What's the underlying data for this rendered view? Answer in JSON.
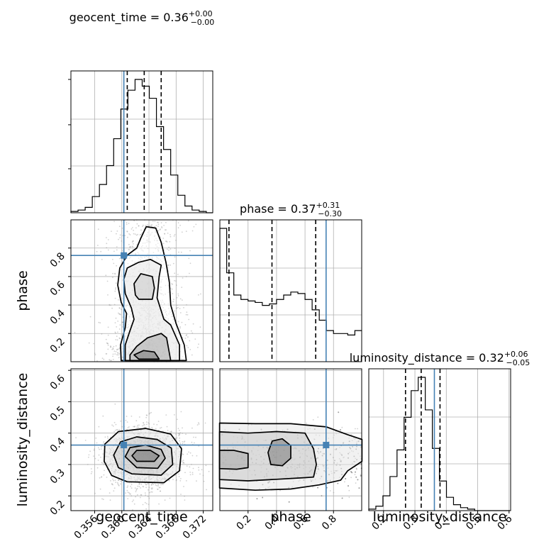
{
  "chart_data": {
    "type": "corner",
    "parameters": [
      "geocent_time",
      "phase",
      "luminosity_distance"
    ],
    "axis_labels": {
      "geocent_time": "geocent_time",
      "phase": "phase",
      "luminosity_distance": "luminosity_distance"
    },
    "ranges": {
      "geocent_time": [
        0.3525,
        0.3734
      ],
      "phase": [
        0.002,
        0.998
      ],
      "luminosity_distance": [
        0.153,
        0.605
      ]
    },
    "truths": {
      "geocent_time": 0.3603,
      "phase": 0.748,
      "luminosity_distance": 0.362
    },
    "truth_color": "#4682b4",
    "titles": [
      {
        "param": "geocent_time",
        "prefix": "geocent_time = 0.36",
        "plus": "+0.00",
        "minus": "−0.00"
      },
      {
        "param": "phase",
        "prefix": "phase = 0.37",
        "plus": "+0.31",
        "minus": "−0.30"
      },
      {
        "param": "luminosity_distance",
        "prefix": "luminosity_distance = 0.32",
        "plus": "+0.06",
        "minus": "−0.05"
      }
    ],
    "quantiles": {
      "geocent_time": [
        0.3608,
        0.3633,
        0.3658
      ],
      "phase": [
        0.066,
        0.368,
        0.675
      ],
      "luminosity_distance": [
        0.27,
        0.32,
        0.38
      ]
    },
    "ticks": {
      "geocent_time": {
        "values": [
          0.356,
          0.36,
          0.364,
          0.368,
          0.372
        ],
        "labels": [
          "0.356",
          "0.360",
          "0.364",
          "0.368",
          "0.372"
        ]
      },
      "phase": {
        "values": [
          0.2,
          0.4,
          0.6,
          0.8
        ],
        "labels": [
          "0.2",
          "0.4",
          "0.6",
          "0.8"
        ]
      },
      "luminosity_distance_y": {
        "values": [
          0.2,
          0.3,
          0.4,
          0.5,
          0.6
        ],
        "labels": [
          "0.2",
          "0.3",
          "0.4",
          "0.5",
          "0.6"
        ]
      },
      "luminosity_distance_x": {
        "values": [
          0.2,
          0.3,
          0.4,
          0.5,
          0.6
        ],
        "labels": [
          "0.2",
          "0.3",
          "0.4",
          "0.5",
          "0.6"
        ]
      }
    },
    "hist_geocent_time": {
      "bin_edges": [
        0.3525,
        0.35355,
        0.3546,
        0.35565,
        0.3567,
        0.35775,
        0.3588,
        0.35985,
        0.3609,
        0.36195,
        0.363,
        0.36405,
        0.3651,
        0.36615,
        0.3672,
        0.36825,
        0.3693,
        0.37035,
        0.3714,
        0.37245,
        0.3735
      ],
      "counts": [
        0.01,
        0.02,
        0.04,
        0.12,
        0.21,
        0.35,
        0.55,
        0.77,
        0.91,
        0.99,
        0.94,
        0.85,
        0.64,
        0.47,
        0.28,
        0.13,
        0.05,
        0.02,
        0.01,
        0.0
      ]
    },
    "hist_phase": {
      "bin_edges": [
        0.0,
        0.05,
        0.1,
        0.15,
        0.2,
        0.25,
        0.3,
        0.35,
        0.4,
        0.45,
        0.5,
        0.55,
        0.6,
        0.65,
        0.7,
        0.75,
        0.8,
        0.85,
        0.9,
        0.95,
        1.0
      ],
      "counts": [
        0.9,
        0.6,
        0.45,
        0.42,
        0.41,
        0.4,
        0.38,
        0.39,
        0.42,
        0.45,
        0.47,
        0.46,
        0.42,
        0.35,
        0.28,
        0.21,
        0.19,
        0.19,
        0.18,
        0.21
      ]
    },
    "hist_luminosity_distance": {
      "bin_edges": [
        0.153,
        0.1755,
        0.198,
        0.2205,
        0.243,
        0.2655,
        0.288,
        0.3105,
        0.333,
        0.3555,
        0.378,
        0.4005,
        0.423,
        0.4455,
        0.468,
        0.4905,
        0.513,
        0.5355,
        0.558,
        0.5805,
        0.603
      ],
      "counts": [
        0.01,
        0.03,
        0.1,
        0.23,
        0.41,
        0.63,
        0.81,
        0.9,
        0.68,
        0.42,
        0.2,
        0.09,
        0.04,
        0.02,
        0.01,
        0.0,
        0.0,
        0.0,
        0.0,
        0.0
      ]
    },
    "contours": {
      "geocent_time__phase": [
        {
          "level": 1,
          "points": [
            [
              0.3625,
              0.02
            ],
            [
              0.3655,
              0.02
            ],
            [
              0.3648,
              0.07
            ],
            [
              0.3632,
              0.08
            ],
            [
              0.3618,
              0.05
            ]
          ]
        },
        {
          "level": 2,
          "points": [
            [
              0.3612,
              0.01
            ],
            [
              0.3672,
              0.01
            ],
            [
              0.3666,
              0.17
            ],
            [
              0.3658,
              0.2
            ],
            [
              0.3638,
              0.17
            ],
            [
              0.3622,
              0.11
            ],
            [
              0.3612,
              0.05
            ]
          ]
        },
        {
          "level": 3,
          "points": [
            [
              0.3625,
              0.44
            ],
            [
              0.3645,
              0.44
            ],
            [
              0.3648,
              0.52
            ],
            [
              0.3645,
              0.6
            ],
            [
              0.3628,
              0.62
            ],
            [
              0.3618,
              0.55
            ],
            [
              0.362,
              0.47
            ]
          ]
        },
        {
          "level": 4,
          "points": [
            [
              0.3605,
              0.01
            ],
            [
              0.3685,
              0.01
            ],
            [
              0.3685,
              0.12
            ],
            [
              0.3672,
              0.26
            ],
            [
              0.3662,
              0.3
            ],
            [
              0.3652,
              0.45
            ],
            [
              0.3655,
              0.6
            ],
            [
              0.3658,
              0.68
            ],
            [
              0.3642,
              0.72
            ],
            [
              0.3625,
              0.7
            ],
            [
              0.3608,
              0.66
            ],
            [
              0.3603,
              0.58
            ],
            [
              0.3605,
              0.48
            ],
            [
              0.3614,
              0.38
            ],
            [
              0.3618,
              0.3
            ],
            [
              0.3612,
              0.22
            ],
            [
              0.3605,
              0.12
            ]
          ]
        },
        {
          "level": 5,
          "points": [
            [
              0.3599,
              0.01
            ],
            [
              0.3695,
              0.01
            ],
            [
              0.3692,
              0.12
            ],
            [
              0.368,
              0.27
            ],
            [
              0.3672,
              0.4
            ],
            [
              0.367,
              0.56
            ],
            [
              0.3665,
              0.7
            ],
            [
              0.3658,
              0.84
            ],
            [
              0.365,
              0.94
            ],
            [
              0.3636,
              0.95
            ],
            [
              0.3628,
              0.87
            ],
            [
              0.3622,
              0.8
            ],
            [
              0.3608,
              0.75
            ],
            [
              0.3597,
              0.66
            ],
            [
              0.3594,
              0.54
            ],
            [
              0.3599,
              0.42
            ],
            [
              0.3607,
              0.34
            ],
            [
              0.3605,
              0.24
            ],
            [
              0.3598,
              0.12
            ]
          ]
        }
      ],
      "geocent_time__luminosity_distance": [
        {
          "level": 1,
          "points": [
            [
              0.3622,
              0.31
            ],
            [
              0.3648,
              0.31
            ],
            [
              0.3655,
              0.328
            ],
            [
              0.3642,
              0.345
            ],
            [
              0.3622,
              0.345
            ],
            [
              0.3615,
              0.328
            ]
          ]
        },
        {
          "level": 2,
          "points": [
            [
              0.3622,
              0.29
            ],
            [
              0.3653,
              0.288
            ],
            [
              0.3664,
              0.32
            ],
            [
              0.3658,
              0.348
            ],
            [
              0.3635,
              0.362
            ],
            [
              0.3612,
              0.354
            ],
            [
              0.3605,
              0.325
            ]
          ]
        },
        {
          "level": 3,
          "points": [
            [
              0.3615,
              0.27
            ],
            [
              0.3658,
              0.266
            ],
            [
              0.3675,
              0.3
            ],
            [
              0.3673,
              0.352
            ],
            [
              0.3652,
              0.38
            ],
            [
              0.3622,
              0.388
            ],
            [
              0.3598,
              0.372
            ],
            [
              0.3588,
              0.33
            ],
            [
              0.3595,
              0.29
            ]
          ]
        },
        {
          "level": 4,
          "points": [
            [
              0.3608,
              0.245
            ],
            [
              0.3662,
              0.242
            ],
            [
              0.3685,
              0.28
            ],
            [
              0.3688,
              0.35
            ],
            [
              0.3672,
              0.397
            ],
            [
              0.3635,
              0.415
            ],
            [
              0.3595,
              0.405
            ],
            [
              0.3575,
              0.365
            ],
            [
              0.3574,
              0.31
            ],
            [
              0.3585,
              0.265
            ]
          ]
        }
      ],
      "phase__luminosity_distance": [
        {
          "level": 1,
          "points": [
            [
              0.36,
              0.3
            ],
            [
              0.44,
              0.296
            ],
            [
              0.5,
              0.32
            ],
            [
              0.5,
              0.36
            ],
            [
              0.44,
              0.382
            ],
            [
              0.37,
              0.375
            ],
            [
              0.34,
              0.338
            ]
          ]
        },
        {
          "level": 2,
          "points": [
            [
              0.0,
              0.287
            ],
            [
              0.12,
              0.285
            ],
            [
              0.2,
              0.29
            ],
            [
              0.2,
              0.335
            ],
            [
              0.1,
              0.345
            ],
            [
              0.0,
              0.345
            ]
          ]
        },
        {
          "level": 3,
          "points": [
            [
              0.0,
              0.252
            ],
            [
              0.2,
              0.248
            ],
            [
              0.4,
              0.253
            ],
            [
              0.6,
              0.258
            ],
            [
              0.66,
              0.26
            ],
            [
              0.68,
              0.3
            ],
            [
              0.66,
              0.35
            ],
            [
              0.6,
              0.4
            ],
            [
              0.4,
              0.405
            ],
            [
              0.2,
              0.4
            ],
            [
              0.0,
              0.404
            ]
          ]
        },
        {
          "level": 4,
          "points": [
            [
              0.0,
              0.225
            ],
            [
              0.25,
              0.218
            ],
            [
              0.5,
              0.222
            ],
            [
              0.7,
              0.235
            ],
            [
              0.85,
              0.25
            ],
            [
              0.9,
              0.28
            ],
            [
              1.0,
              0.31
            ],
            [
              1.0,
              0.38
            ],
            [
              0.9,
              0.395
            ],
            [
              0.75,
              0.42
            ],
            [
              0.5,
              0.43
            ],
            [
              0.25,
              0.43
            ],
            [
              0.0,
              0.432
            ]
          ]
        }
      ]
    }
  }
}
